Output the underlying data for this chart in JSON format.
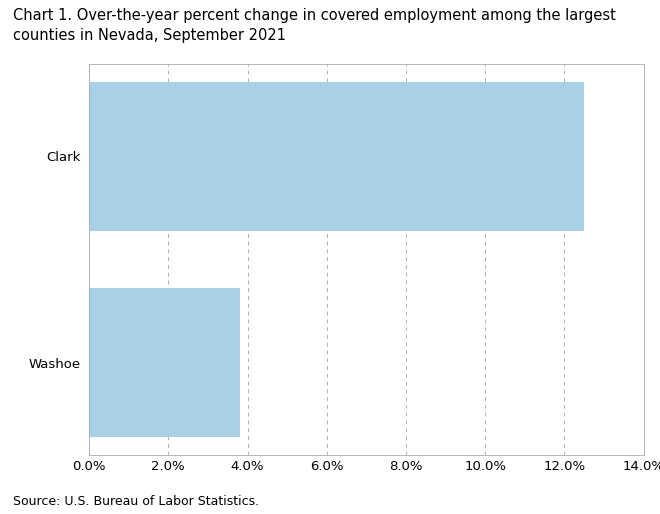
{
  "title_line1": "Chart 1. Over-the-year percent change in covered employment among the largest",
  "title_line2": "counties in Nevada, September 2021",
  "categories": [
    "Washoe",
    "Clark"
  ],
  "values": [
    0.038,
    0.125
  ],
  "bar_color": "#a8d0e6",
  "xlim": [
    0,
    0.14
  ],
  "xticks": [
    0.0,
    0.02,
    0.04,
    0.06,
    0.08,
    0.1,
    0.12,
    0.14
  ],
  "xticklabels": [
    "0.0%",
    "2.0%",
    "4.0%",
    "6.0%",
    "8.0%",
    "10.0%",
    "12.0%",
    "14.0%"
  ],
  "grid_color": "#b0b0b0",
  "source_text": "Source: U.S. Bureau of Labor Statistics.",
  "background_color": "#ffffff",
  "title_fontsize": 10.5,
  "tick_fontsize": 9.5,
  "source_fontsize": 9,
  "bar_height": 0.72
}
